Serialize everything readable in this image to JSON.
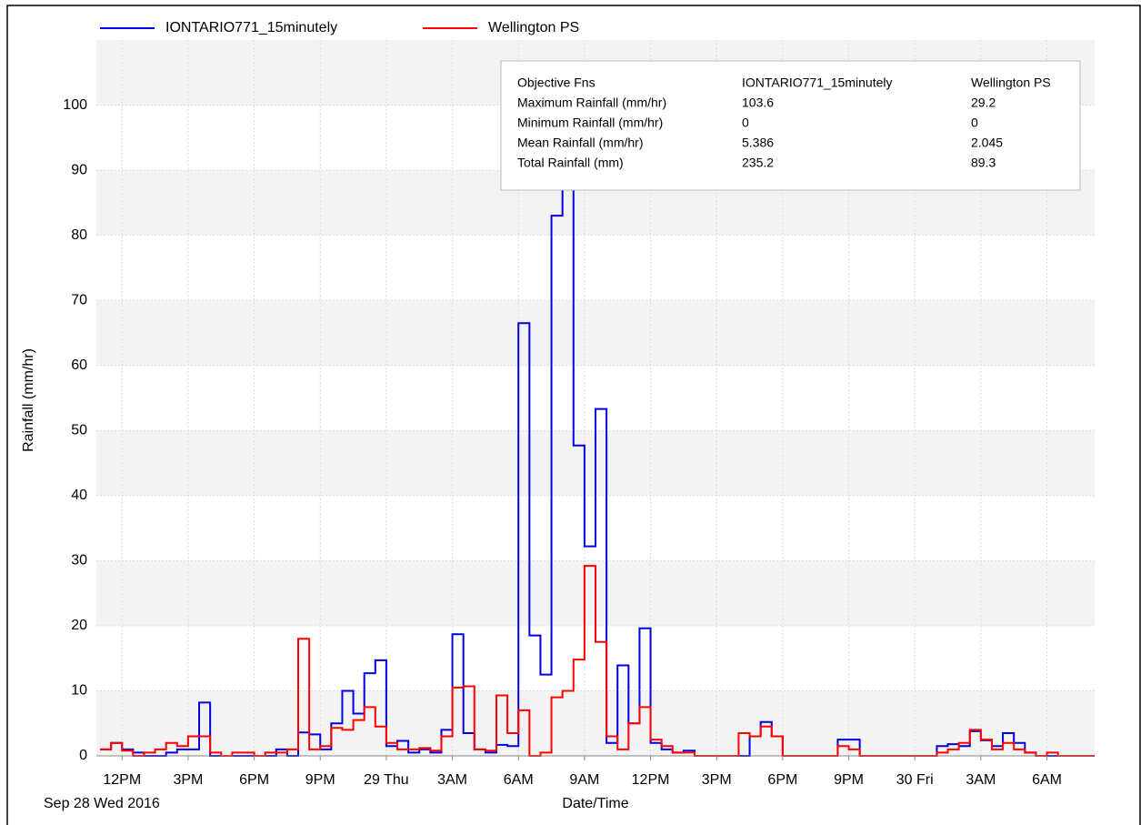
{
  "chart_data": {
    "type": "step",
    "y_label": "Rainfall (mm/hr)",
    "x_label": "Date/Time",
    "x_date_label": "Sep 28 Wed 2016",
    "ylim": [
      0,
      110
    ],
    "yticks": [
      0,
      10,
      20,
      30,
      40,
      50,
      60,
      70,
      80,
      90,
      100
    ],
    "xlim": [
      "2016-09-28 10:50",
      "2016-09-30 08:10"
    ],
    "xticks": [
      {
        "value": "2016-09-28 12:00",
        "label": "12PM"
      },
      {
        "value": "2016-09-28 15:00",
        "label": "3PM"
      },
      {
        "value": "2016-09-28 18:00",
        "label": "6PM"
      },
      {
        "value": "2016-09-28 21:00",
        "label": "9PM"
      },
      {
        "value": "2016-09-29 00:00",
        "label": "29 Thu"
      },
      {
        "value": "2016-09-29 03:00",
        "label": "3AM"
      },
      {
        "value": "2016-09-29 06:00",
        "label": "6AM"
      },
      {
        "value": "2016-09-29 09:00",
        "label": "9AM"
      },
      {
        "value": "2016-09-29 12:00",
        "label": "12PM"
      },
      {
        "value": "2016-09-29 15:00",
        "label": "3PM"
      },
      {
        "value": "2016-09-29 18:00",
        "label": "6PM"
      },
      {
        "value": "2016-09-29 21:00",
        "label": "9PM"
      },
      {
        "value": "2016-09-30 00:00",
        "label": "30 Fri"
      },
      {
        "value": "2016-09-30 03:00",
        "label": "3AM"
      },
      {
        "value": "2016-09-30 06:00",
        "label": "6AM"
      }
    ],
    "grid": true,
    "legend": "top",
    "x": [
      "2016-09-28 11:00",
      "2016-09-28 11:30",
      "2016-09-28 12:00",
      "2016-09-28 12:30",
      "2016-09-28 13:00",
      "2016-09-28 13:30",
      "2016-09-28 14:00",
      "2016-09-28 14:30",
      "2016-09-28 15:00",
      "2016-09-28 15:30",
      "2016-09-28 16:00",
      "2016-09-28 16:30",
      "2016-09-28 17:00",
      "2016-09-28 17:30",
      "2016-09-28 18:00",
      "2016-09-28 18:30",
      "2016-09-28 19:00",
      "2016-09-28 19:30",
      "2016-09-28 20:00",
      "2016-09-28 20:30",
      "2016-09-28 21:00",
      "2016-09-28 21:30",
      "2016-09-28 22:00",
      "2016-09-28 22:30",
      "2016-09-28 23:00",
      "2016-09-28 23:30",
      "2016-09-29 00:00",
      "2016-09-29 00:30",
      "2016-09-29 01:00",
      "2016-09-29 01:30",
      "2016-09-29 02:00",
      "2016-09-29 02:30",
      "2016-09-29 03:00",
      "2016-09-29 03:30",
      "2016-09-29 04:00",
      "2016-09-29 04:30",
      "2016-09-29 05:00",
      "2016-09-29 05:30",
      "2016-09-29 06:00",
      "2016-09-29 06:30",
      "2016-09-29 07:00",
      "2016-09-29 07:30",
      "2016-09-29 08:00",
      "2016-09-29 08:30",
      "2016-09-29 09:00",
      "2016-09-29 09:30",
      "2016-09-29 10:00",
      "2016-09-29 10:30",
      "2016-09-29 11:00",
      "2016-09-29 11:30",
      "2016-09-29 12:00",
      "2016-09-29 12:30",
      "2016-09-29 13:00",
      "2016-09-29 13:30",
      "2016-09-29 14:00",
      "2016-09-29 14:30",
      "2016-09-29 15:00",
      "2016-09-29 15:30",
      "2016-09-29 16:00",
      "2016-09-29 16:30",
      "2016-09-29 17:00",
      "2016-09-29 17:30",
      "2016-09-29 18:00",
      "2016-09-29 18:30",
      "2016-09-29 19:00",
      "2016-09-29 19:30",
      "2016-09-29 20:00",
      "2016-09-29 20:30",
      "2016-09-29 21:00",
      "2016-09-29 21:30",
      "2016-09-29 22:00",
      "2016-09-29 22:30",
      "2016-09-29 23:00",
      "2016-09-29 23:30",
      "2016-09-30 00:00",
      "2016-09-30 00:30",
      "2016-09-30 01:00",
      "2016-09-30 01:30",
      "2016-09-30 02:00",
      "2016-09-30 02:30",
      "2016-09-30 03:00",
      "2016-09-30 03:30",
      "2016-09-30 04:00",
      "2016-09-30 04:30",
      "2016-09-30 05:00",
      "2016-09-30 05:30",
      "2016-09-30 06:00",
      "2016-09-30 06:30"
    ],
    "series": [
      {
        "name": "IONTARIO771_15minutely",
        "color": "#0000e0",
        "values": [
          1,
          2,
          1,
          0.5,
          0,
          0,
          0.5,
          1,
          1,
          8.2,
          0,
          0,
          0,
          0,
          0,
          0,
          1,
          0,
          3.6,
          3.3,
          1,
          5,
          10,
          6.5,
          12.7,
          14.7,
          1.5,
          2.3,
          0.5,
          1,
          0.5,
          4,
          18.7,
          3.5,
          1,
          0.5,
          1.7,
          1.5,
          66.5,
          18.5,
          12.5,
          83,
          103.6,
          47.7,
          32.2,
          53.3,
          2,
          13.9,
          5,
          19.6,
          2,
          1,
          0.5,
          0.8,
          0,
          0,
          0,
          0,
          0,
          3,
          5.2,
          3,
          0,
          0,
          0,
          0,
          0,
          2.5,
          2.5,
          0,
          0,
          0,
          0,
          0,
          0,
          0,
          1.5,
          1.8,
          1.5,
          3.8,
          2.4,
          1.5,
          3.5,
          2,
          0.5,
          0,
          0,
          0
        ]
      },
      {
        "name": "Wellington PS",
        "color": "#ff0000",
        "values": [
          1,
          2,
          0.8,
          0,
          0.5,
          1,
          2,
          1.5,
          3,
          3,
          0.5,
          0,
          0.5,
          0.5,
          0,
          0.5,
          0.5,
          1,
          18,
          1,
          1.5,
          4.3,
          4,
          5.5,
          7.5,
          4.5,
          2,
          1,
          1,
          1.2,
          0.8,
          3,
          10.5,
          10.7,
          1,
          0.8,
          9.3,
          3.5,
          7,
          0,
          0.5,
          9,
          10,
          14.8,
          29.2,
          17.5,
          3,
          1,
          5,
          7.5,
          2.5,
          1.5,
          0.5,
          0.5,
          0,
          0,
          0,
          0,
          3.5,
          3,
          4.5,
          3,
          0,
          0,
          0,
          0,
          0,
          1.5,
          1,
          0,
          0,
          0,
          0,
          0,
          0,
          0,
          0.5,
          1,
          2,
          4,
          2.5,
          1,
          2,
          1,
          0.5,
          0,
          0.5,
          0
        ]
      }
    ],
    "stats_table": {
      "header": [
        "Objective Fns",
        "IONTARIO771_15minutely",
        "Wellington PS"
      ],
      "rows": [
        [
          "Maximum Rainfall (mm/hr)",
          "103.6",
          "29.2"
        ],
        [
          "Minimum Rainfall (mm/hr)",
          "0",
          "0"
        ],
        [
          "Mean Rainfall (mm/hr)",
          "5.386",
          "2.045"
        ],
        [
          "Total Rainfall (mm)",
          "235.2",
          "89.3"
        ]
      ]
    }
  }
}
